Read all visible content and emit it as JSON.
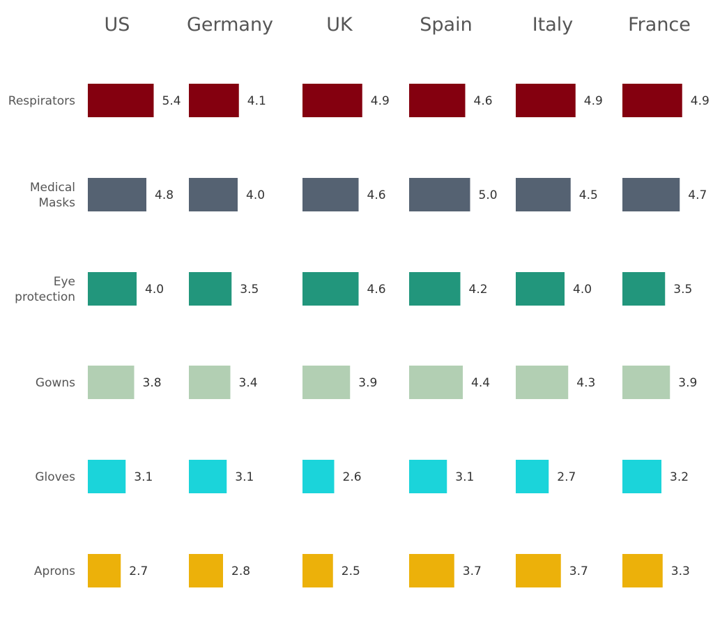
{
  "chart_data": {
    "type": "bar",
    "orientation": "horizontal",
    "layout": "small-multiples",
    "panels": [
      "US",
      "Germany",
      "UK",
      "Spain",
      "Italy",
      "France"
    ],
    "categories": [
      [
        "Respirators"
      ],
      [
        "Medical",
        "Masks"
      ],
      [
        "Eye",
        "protection"
      ],
      [
        "Gowns"
      ],
      [
        "Gloves"
      ],
      [
        "Aprons"
      ]
    ],
    "values": [
      [
        5.4,
        4.1,
        4.9,
        4.6,
        4.9,
        4.9
      ],
      [
        4.8,
        4.0,
        4.6,
        5.0,
        4.5,
        4.7
      ],
      [
        4.0,
        3.5,
        4.6,
        4.2,
        4.0,
        3.5
      ],
      [
        3.8,
        3.4,
        3.9,
        4.4,
        4.3,
        3.9
      ],
      [
        3.1,
        3.1,
        2.6,
        3.1,
        2.7,
        3.2
      ],
      [
        2.7,
        2.8,
        2.5,
        3.7,
        3.7,
        3.3
      ]
    ],
    "value_labels": [
      [
        "5.4",
        "4.1",
        "4.9",
        "4.6",
        "4.9",
        "4.9"
      ],
      [
        "4.8",
        "4.0",
        "4.6",
        "5.0",
        "4.5",
        "4.7"
      ],
      [
        "4.0",
        "3.5",
        "4.6",
        "4.2",
        "4.0",
        "3.5"
      ],
      [
        "3.8",
        "3.4",
        "3.9",
        "4.4",
        "4.3",
        "3.9"
      ],
      [
        "3.1",
        "3.1",
        "2.6",
        "3.1",
        "2.7",
        "3.2"
      ],
      [
        "2.7",
        "2.8",
        "2.5",
        "3.7",
        "3.7",
        "3.3"
      ]
    ],
    "colors": [
      "#84000f",
      "#556272",
      "#22967c",
      "#b2cfb3",
      "#1bd4da",
      "#ecb10a"
    ],
    "grid": false,
    "axes_visible": false,
    "data_labels": true
  }
}
